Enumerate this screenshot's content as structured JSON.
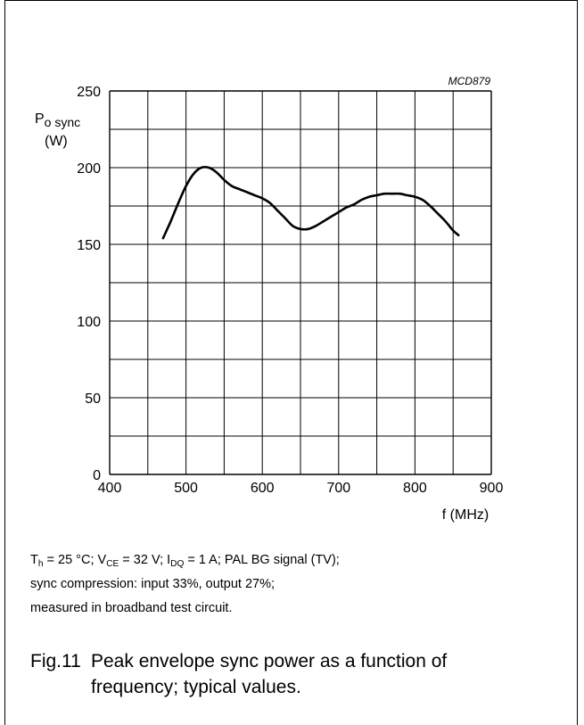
{
  "chart_data": {
    "type": "line",
    "code": "MCD879",
    "ylabel_main": "P",
    "ylabel_sub": "o sync",
    "ylabel_unit": "(W)",
    "xlabel": "f (MHz)",
    "xlim": [
      400,
      900
    ],
    "ylim": [
      0,
      250
    ],
    "x_ticks": [
      "400",
      "500",
      "600",
      "700",
      "800",
      "900"
    ],
    "y_ticks": [
      "0",
      "50",
      "100",
      "150",
      "200",
      "250"
    ],
    "grid": true,
    "series": [
      {
        "x": [
          470,
          480,
          490,
          500,
          510,
          520,
          530,
          540,
          550,
          560,
          570,
          580,
          590,
          600,
          610,
          620,
          630,
          640,
          650,
          660,
          670,
          680,
          690,
          700,
          710,
          720,
          730,
          740,
          750,
          760,
          770,
          780,
          790,
          800,
          810,
          820,
          830,
          840,
          850,
          857
        ],
        "y": [
          154,
          165,
          177,
          188,
          196,
          200,
          200,
          197,
          192,
          188,
          186,
          184,
          182,
          180,
          177,
          172,
          167,
          162,
          160,
          160,
          162,
          165,
          168,
          171,
          174,
          176,
          179,
          181,
          182,
          183,
          183,
          183,
          182,
          181,
          179,
          175,
          170,
          165,
          159,
          156
        ]
      }
    ]
  },
  "conditions": {
    "line1": {
      "t": "T",
      "t_sub": "h",
      "t_rest": " = 25 °C; V",
      "v_sub": "CE",
      "v_rest": " = 32 V; I",
      "i_sub": "DQ",
      "i_rest": " = 1 A; PAL BG signal (TV);"
    },
    "line2": "sync compression: input 33%, output 27%;",
    "line3": "measured in broadband test circuit."
  },
  "caption": {
    "number": "Fig.11",
    "line1": "Peak envelope sync power as a function of",
    "line2": "frequency; typical values."
  }
}
